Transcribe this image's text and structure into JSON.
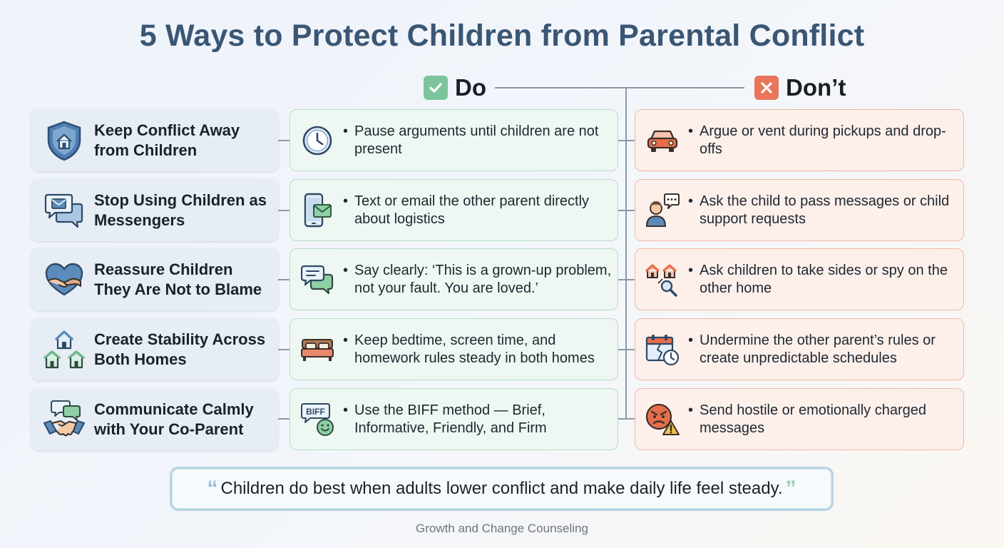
{
  "title": "5 Ways to Protect Children from Parental Conflict",
  "columns": {
    "do": {
      "label": "Do",
      "badge_color": "#7cc59b"
    },
    "dont": {
      "label": "Don’t",
      "badge_color": "#ea7659"
    }
  },
  "rows": [
    {
      "topic": "Keep Conflict Away from Children",
      "topic_icon": "shield-home-icon",
      "do": "Pause arguments until children are not present",
      "do_icon": "clock-icon",
      "dont": "Argue or vent during pickups and drop-offs",
      "dont_icon": "car-icon"
    },
    {
      "topic": "Stop Using Children as Messengers",
      "topic_icon": "message-bubbles-icon",
      "do": "Text or email the other parent directly about logistics",
      "do_icon": "phone-email-icon",
      "dont": "Ask the child to pass messages or child support requests",
      "dont_icon": "child-message-icon"
    },
    {
      "topic": "Reassure Children They Are Not to Blame",
      "topic_icon": "heart-hands-icon",
      "do": "Say clearly: ‘This is a grown-up problem, not your fault. You are loved.’",
      "do_icon": "speech-bubbles-icon",
      "dont": "Ask children to take sides or spy on the other home",
      "dont_icon": "homes-magnifier-icon"
    },
    {
      "topic": "Create Stability Across Both Homes",
      "topic_icon": "three-houses-icon",
      "do": "Keep bedtime, screen time, and homework rules steady in both homes",
      "do_icon": "bed-icon",
      "dont": "Undermine the other parent’s rules or create unpredictable schedules",
      "dont_icon": "broken-calendar-icon"
    },
    {
      "topic": "Communicate Calmly with Your Co-Parent",
      "topic_icon": "handshake-icon",
      "do": "Use the BIFF method — Brief, Informative, Friendly, and Firm",
      "do_icon": "biff-bubble-icon",
      "dont": "Send hostile or emotionally charged messages",
      "dont_icon": "angry-face-warning-icon"
    }
  ],
  "biff_label": "BIFF",
  "quote": {
    "open": "“",
    "text": "Children do best when adults lower conflict and make daily life feel steady.",
    "close": "”"
  },
  "footer": "Growth and Change Counseling"
}
